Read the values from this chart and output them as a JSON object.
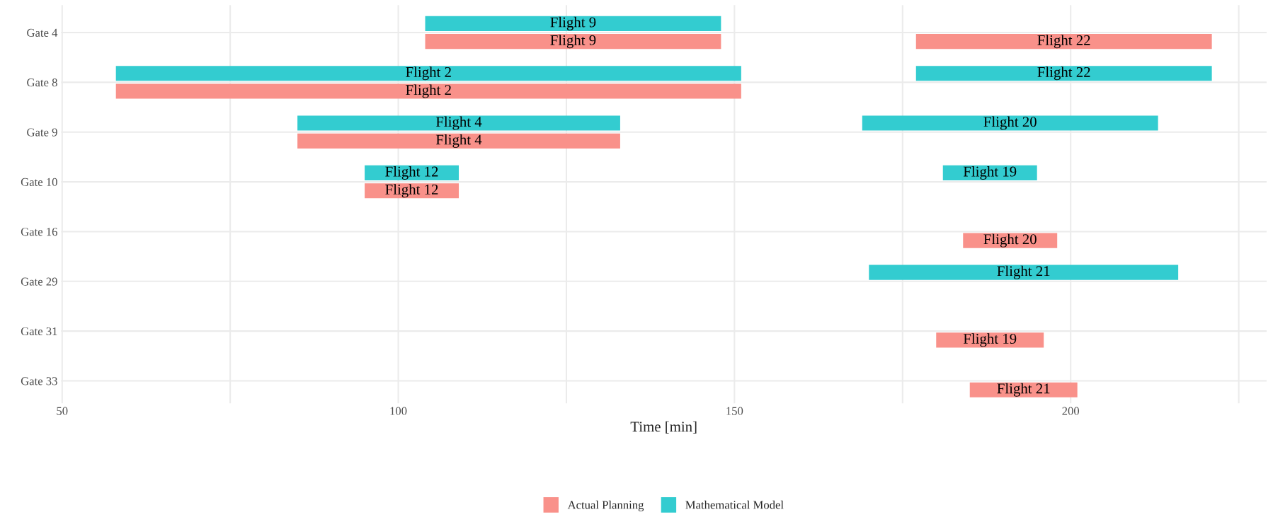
{
  "chart_data": {
    "type": "bar",
    "orientation": "horizontal",
    "xlabel": "Time [min]",
    "categories": [
      "Gate 4",
      "Gate 8",
      "Gate 9",
      "Gate 10",
      "Gate 16",
      "Gate 29",
      "Gate 31",
      "Gate 33"
    ],
    "series": [
      {
        "name": "Actual Planning",
        "color": "#f9918a",
        "base": [
          104,
          58,
          85,
          95,
          184,
          null,
          180,
          185
        ],
        "values": [
          44,
          93,
          48,
          14,
          14,
          null,
          16,
          16
        ],
        "value_labels": [
          "Flight 9",
          "Flight 2",
          "Flight 4",
          "Flight 12",
          "Flight 20",
          null,
          "Flight 19",
          "Flight 21"
        ]
      },
      {
        "color": "#f9918a",
        "base": [
          177,
          null,
          null,
          null,
          null,
          null,
          null,
          null
        ],
        "values": [
          44,
          null,
          null,
          null,
          null,
          null,
          null,
          null
        ],
        "value_labels": [
          "Flight 22",
          null,
          null,
          null,
          null,
          null,
          null,
          null
        ]
      },
      {
        "name": "Mathematical Model",
        "color": "#33ccd0",
        "base": [
          104,
          58,
          85,
          95,
          null,
          170,
          null,
          null
        ],
        "values": [
          44,
          93,
          48,
          14,
          null,
          46,
          null,
          null
        ],
        "value_labels": [
          "Flight 9",
          "Flight 2",
          "Flight 4",
          "Flight 12",
          null,
          "Flight 21",
          null,
          null
        ]
      },
      {
        "color": "#33ccd0",
        "base": [
          null,
          177,
          169,
          181,
          null,
          null,
          null,
          null
        ],
        "values": [
          null,
          44,
          44,
          14,
          null,
          null,
          null,
          null
        ],
        "value_labels": [
          null,
          "Flight 22",
          "Flight 20",
          "Flight 19",
          null,
          null,
          null,
          null
        ]
      }
    ],
    "xlim": [
      49.85,
      229.15
    ],
    "xticks": [
      50,
      {
        "value": 75,
        "label": null
      },
      100,
      {
        "value": 125,
        "label": null
      },
      150,
      {
        "value": 175,
        "label": null
      },
      200,
      {
        "value": 225,
        "label": null
      }
    ],
    "grid": true,
    "legend": "bottom"
  }
}
